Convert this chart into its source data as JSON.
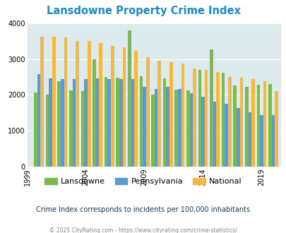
{
  "title": "Lansdowne Property Crime Index",
  "years": [
    2000,
    2001,
    2002,
    2003,
    2004,
    2005,
    2006,
    2007,
    2008,
    2009,
    2010,
    2011,
    2012,
    2013,
    2014,
    2015,
    2016,
    2017,
    2018,
    2019,
    2020
  ],
  "lansdowne": [
    2060,
    2000,
    2380,
    2120,
    2100,
    3000,
    2500,
    2480,
    3800,
    2530,
    2000,
    2460,
    2150,
    2130,
    2690,
    3280,
    2620,
    2260,
    2220,
    2290,
    2310
  ],
  "pennsylvania": [
    2590,
    2470,
    2440,
    2440,
    2440,
    2460,
    2440,
    2440,
    2440,
    2220,
    2170,
    2230,
    2160,
    2050,
    1960,
    1810,
    1760,
    1640,
    1510,
    1430,
    1430
  ],
  "national": [
    3620,
    3620,
    3600,
    3510,
    3510,
    3440,
    3370,
    3330,
    3240,
    3050,
    2960,
    2910,
    2870,
    2730,
    2700,
    2640,
    2510,
    2480,
    2450,
    2380,
    2100
  ],
  "lansdowne_color": "#7cba4a",
  "pennsylvania_color": "#5b9bd5",
  "national_color": "#f4b942",
  "bg_color": "#ddeaed",
  "title_color": "#1a8cc8",
  "ylabel_max": 4000,
  "subtitle": "Crime Index corresponds to incidents per 100,000 inhabitants",
  "footer": "© 2025 CityRating.com - https://www.cityrating.com/crime-statistics/",
  "subtitle_color": "#1a3a5c",
  "footer_color": "#888888",
  "tick_years": [
    1999,
    2004,
    2009,
    2014,
    2019
  ],
  "legend_labels": [
    "Lansdowne",
    "Pennsylvania",
    "National"
  ]
}
